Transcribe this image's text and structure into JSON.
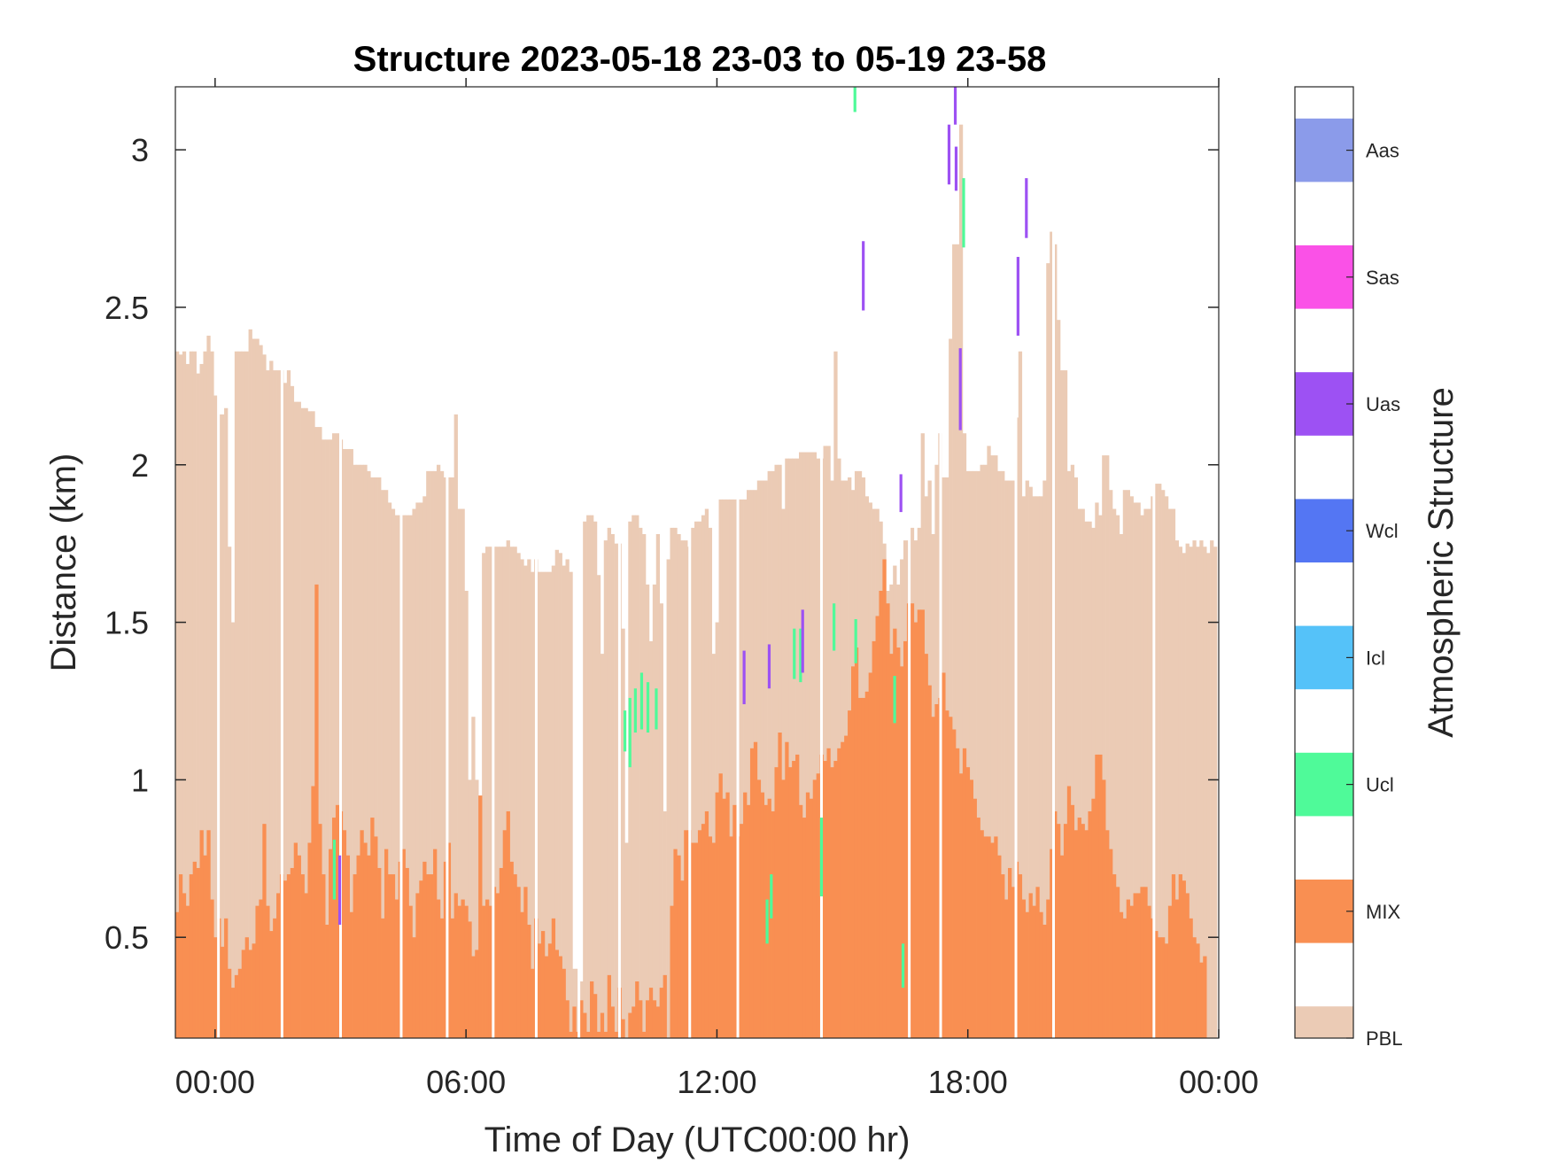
{
  "chart_data": {
    "type": "bar",
    "title": "Structure 2023-05-18 23-03 to 05-19 23-58",
    "xlabel": "Time of Day (UTC00:00 hr)",
    "ylabel": "Distance (km)",
    "xlim_hours": [
      -0.95,
      24.0
    ],
    "ylim": [
      0.18,
      3.2
    ],
    "xticks": [
      {
        "value": 0,
        "label": "00:00"
      },
      {
        "value": 6,
        "label": "06:00"
      },
      {
        "value": 12,
        "label": "12:00"
      },
      {
        "value": 18,
        "label": "18:00"
      },
      {
        "value": 24,
        "label": "00:00"
      }
    ],
    "yticks": [
      {
        "value": 0.5,
        "label": "0.5"
      },
      {
        "value": 1,
        "label": "1"
      },
      {
        "value": 1.5,
        "label": "1.5"
      },
      {
        "value": 2,
        "label": "2"
      },
      {
        "value": 2.5,
        "label": "2.5"
      },
      {
        "value": 3,
        "label": "3"
      }
    ],
    "colorbar": {
      "label": "Atmospheric Structure",
      "categories": [
        {
          "name": "PBL",
          "color": "#ebcbb5"
        },
        {
          "name": "MIX",
          "color": "#f98f52"
        },
        {
          "name": "Ucl",
          "color": "#4ffa99"
        },
        {
          "name": "Icl",
          "color": "#55c2f9"
        },
        {
          "name": "Wcl",
          "color": "#5476f3"
        },
        {
          "name": "Uas",
          "color": "#9d51f3"
        },
        {
          "name": "Sas",
          "color": "#fa51e7"
        },
        {
          "name": "Aas",
          "color": "#8b9bea"
        }
      ]
    },
    "series": [
      {
        "name": "PBL",
        "x_start_hours": -0.95,
        "step_hours": 0.0833,
        "values": [
          2.36,
          2.35,
          2.36,
          2.32,
          2.36,
          2.36,
          2.29,
          2.32,
          2.36,
          2.41,
          2.36,
          2.22,
          2.16,
          2.16,
          2.18,
          1.74,
          1.5,
          2.36,
          2.36,
          2.36,
          2.36,
          2.43,
          2.4,
          2.4,
          2.38,
          2.35,
          2.3,
          2.33,
          2.3,
          2.3,
          2.3,
          2.26,
          2.3,
          2.25,
          2.2,
          2.2,
          2.18,
          2.18,
          2.17,
          2.17,
          2.12,
          2.12,
          2.08,
          2.08,
          2.08,
          2.1,
          2.1,
          2.08,
          2.05,
          2.05,
          2.05,
          2.0,
          2.0,
          2.0,
          2.0,
          1.98,
          1.96,
          1.96,
          1.96,
          1.92,
          1.92,
          1.88,
          1.86,
          1.84,
          1.84,
          1.84,
          1.84,
          1.84,
          1.86,
          1.88,
          1.88,
          1.9,
          1.98,
          1.98,
          1.98,
          2.0,
          1.98,
          1.96,
          1.96,
          1.96,
          2.16,
          1.86,
          1.86,
          1.6,
          1.0,
          1.2,
          1.0,
          0.95,
          1.72,
          1.74,
          1.74,
          1.74,
          1.74,
          1.74,
          1.74,
          1.76,
          1.74,
          1.74,
          1.72,
          1.7,
          1.68,
          1.7,
          1.66,
          1.7,
          1.66,
          1.66,
          1.66,
          1.66,
          1.68,
          1.73,
          1.72,
          1.68,
          1.7,
          1.66,
          0.4,
          0.4,
          0.36,
          1.82,
          1.84,
          1.84,
          1.82,
          1.65,
          1.4,
          1.76,
          1.8,
          1.78,
          1.75,
          1.75,
          1.48,
          0.8,
          1.82,
          1.84,
          1.84,
          1.8,
          1.78,
          1.62,
          1.44,
          1.62,
          1.78,
          1.56,
          0.9,
          1.7,
          1.8,
          1.8,
          1.78,
          1.76,
          1.76,
          1.74,
          1.8,
          1.82,
          1.82,
          1.84,
          1.86,
          1.8,
          1.4,
          1.5,
          1.89,
          1.89,
          1.89,
          1.89,
          1.89,
          1.89,
          1.89,
          1.89,
          1.92,
          1.92,
          1.92,
          1.95,
          1.95,
          1.95,
          1.98,
          1.98,
          2.0,
          2.0,
          1.86,
          2.02,
          2.02,
          2.02,
          2.02,
          2.04,
          2.04,
          2.04,
          2.04,
          2.04,
          2.02,
          2.02,
          2.06,
          2.06,
          1.95,
          2.36,
          2.02,
          1.95,
          1.95,
          1.96,
          1.92,
          1.98,
          1.98,
          1.96,
          1.9,
          1.88,
          1.86,
          1.86,
          1.82,
          1.75,
          1.6,
          1.62,
          1.68,
          1.62,
          1.7,
          1.76,
          1.76,
          1.8,
          1.76,
          1.8,
          2.1,
          1.9,
          1.95,
          1.78,
          2.0,
          2.1,
          1.96,
          1.96,
          2.4,
          2.7,
          2.7,
          3.08,
          2.1,
          1.98,
          1.98,
          1.98,
          1.98,
          2.0,
          2.0,
          2.06,
          2.03,
          2.03,
          1.98,
          1.98,
          1.95,
          1.95,
          1.95,
          2.15,
          2.36,
          1.9,
          1.95,
          1.93,
          1.9,
          1.9,
          1.9,
          1.95,
          2.64,
          2.74,
          2.7,
          2.46,
          2.3,
          2.3,
          1.98,
          2.0,
          1.96,
          1.86,
          1.86,
          1.82,
          1.82,
          1.8,
          1.88,
          1.84,
          2.03,
          2.03,
          1.92,
          1.86,
          1.84,
          1.78,
          1.92,
          1.92,
          1.9,
          1.88,
          1.88,
          1.84,
          1.86,
          1.86,
          1.9,
          1.94,
          1.94,
          1.92,
          1.9,
          1.86,
          1.86,
          1.76,
          1.74,
          1.72,
          1.75,
          1.74,
          1.76,
          1.74,
          1.76,
          1.74,
          1.72,
          1.76,
          1.74
        ]
      },
      {
        "name": "MIX",
        "x_start_hours": -0.95,
        "step_hours": 0.0833,
        "values": [
          0.58,
          0.7,
          0.64,
          0.6,
          0.7,
          0.74,
          0.72,
          0.84,
          0.76,
          0.84,
          0.62,
          0.5,
          0.56,
          0.47,
          0.56,
          0.4,
          0.34,
          0.38,
          0.4,
          0.46,
          0.5,
          0.46,
          0.48,
          0.6,
          0.62,
          0.86,
          0.6,
          0.52,
          0.56,
          0.64,
          0.7,
          0.68,
          0.7,
          0.72,
          0.8,
          0.76,
          0.7,
          0.64,
          0.8,
          0.98,
          1.62,
          0.86,
          0.7,
          0.54,
          0.78,
          0.88,
          0.92,
          0.9,
          0.84,
          0.76,
          0.58,
          0.7,
          0.76,
          0.84,
          0.8,
          0.76,
          0.88,
          0.82,
          0.72,
          0.56,
          0.78,
          0.7,
          0.7,
          0.62,
          0.74,
          0.78,
          0.72,
          0.6,
          0.5,
          0.64,
          0.68,
          0.74,
          0.7,
          0.7,
          0.78,
          0.62,
          0.56,
          0.74,
          0.8,
          0.56,
          0.64,
          0.6,
          0.62,
          0.6,
          0.55,
          0.44,
          0.46,
          0.95,
          0.6,
          0.62,
          0.6,
          0.66,
          0.64,
          0.72,
          0.84,
          0.9,
          0.74,
          0.7,
          0.66,
          0.58,
          0.66,
          0.54,
          0.4,
          0.56,
          0.48,
          0.52,
          0.44,
          0.48,
          0.56,
          0.46,
          0.44,
          0.4,
          0.3,
          0.2,
          0.28,
          0.2,
          0.3,
          0.26,
          0.2,
          0.36,
          0.32,
          0.2,
          0.26,
          0.2,
          0.38,
          0.28,
          0.2,
          0.34,
          0.24,
          0.18,
          0.26,
          0.28,
          0.36,
          0.3,
          0.2,
          0.3,
          0.34,
          0.3,
          0.28,
          0.34,
          0.38,
          0.18,
          0.6,
          0.78,
          0.76,
          0.68,
          0.84,
          0.84,
          0.8,
          0.8,
          0.84,
          0.86,
          0.9,
          0.82,
          0.8,
          0.96,
          1.02,
          0.94,
          0.96,
          0.82,
          0.92,
          0.82,
          0.86,
          0.96,
          0.92,
          1.1,
          1.12,
          1.0,
          0.96,
          0.92,
          0.94,
          0.9,
          1.04,
          1.15,
          1.0,
          1.12,
          1.04,
          1.06,
          1.08,
          0.92,
          0.88,
          0.96,
          0.94,
          1.0,
          1.02,
          1.08,
          1.06,
          1.1,
          1.04,
          1.06,
          1.1,
          1.12,
          1.14,
          1.22,
          1.36,
          1.42,
          1.26,
          1.26,
          1.28,
          1.34,
          1.44,
          1.52,
          1.6,
          1.7,
          1.56,
          1.4,
          1.48,
          1.42,
          1.36,
          1.44,
          1.56,
          1.56,
          1.5,
          1.54,
          1.54,
          1.4,
          1.3,
          1.2,
          1.24,
          1.26,
          1.34,
          1.22,
          1.2,
          1.16,
          1.1,
          1.02,
          1.1,
          1.04,
          1.0,
          0.94,
          0.88,
          0.84,
          0.82,
          0.82,
          0.8,
          0.82,
          0.76,
          0.7,
          0.62,
          0.72,
          0.66,
          0.74,
          0.7,
          0.62,
          0.58,
          0.64,
          0.6,
          0.66,
          0.58,
          0.54,
          0.62,
          0.78,
          0.9,
          0.86,
          0.76,
          0.86,
          0.98,
          0.92,
          0.84,
          0.88,
          0.86,
          0.84,
          0.9,
          0.94,
          1.08,
          1.08,
          1.0,
          0.84,
          0.78,
          0.7,
          0.66,
          0.58,
          0.56,
          0.62,
          0.6,
          0.64,
          0.64,
          0.66,
          0.66,
          0.6,
          0.56,
          0.52,
          0.5,
          0.5,
          0.48,
          0.6,
          0.7,
          0.62,
          0.7,
          0.68,
          0.64,
          0.56,
          0.5,
          0.48,
          0.42,
          0.44
        ]
      }
    ],
    "gaps_hours": [
      0.08,
      1.6,
      3.0,
      4.45,
      5.55,
      6.65,
      7.68,
      8.7,
      9.67,
      11.35,
      12.5,
      14.5,
      16.6,
      17.35,
      19.15,
      20.05,
      22.45
    ]
  },
  "overlays": [
    {
      "class": "Ucl",
      "color": "#4ffa99",
      "segments": [
        {
          "t": 2.85,
          "y0": 0.62,
          "y1": 0.81
        },
        {
          "t": 9.8,
          "y0": 1.09,
          "y1": 1.22
        },
        {
          "t": 9.92,
          "y0": 1.04,
          "y1": 1.26
        },
        {
          "t": 10.05,
          "y0": 1.15,
          "y1": 1.29
        },
        {
          "t": 10.2,
          "y0": 1.16,
          "y1": 1.34
        },
        {
          "t": 10.35,
          "y0": 1.15,
          "y1": 1.31
        },
        {
          "t": 10.55,
          "y0": 1.16,
          "y1": 1.29
        },
        {
          "t": 13.2,
          "y0": 0.48,
          "y1": 0.62
        },
        {
          "t": 13.3,
          "y0": 0.56,
          "y1": 0.7
        },
        {
          "t": 13.85,
          "y0": 1.32,
          "y1": 1.48
        },
        {
          "t": 14.0,
          "y0": 1.31,
          "y1": 1.48
        },
        {
          "t": 14.5,
          "y0": 0.63,
          "y1": 0.88
        },
        {
          "t": 14.8,
          "y0": 1.41,
          "y1": 1.56
        },
        {
          "t": 15.3,
          "y0": 3.12,
          "y1": 3.2
        },
        {
          "t": 15.32,
          "y0": 1.37,
          "y1": 1.51
        },
        {
          "t": 16.25,
          "y0": 1.18,
          "y1": 1.33
        },
        {
          "t": 16.45,
          "y0": 0.34,
          "y1": 0.48
        },
        {
          "t": 17.9,
          "y0": 2.69,
          "y1": 2.91
        }
      ]
    },
    {
      "class": "Uas",
      "color": "#9d51f3",
      "segments": [
        {
          "t": 2.98,
          "y0": 0.54,
          "y1": 0.76
        },
        {
          "t": 12.65,
          "y0": 1.24,
          "y1": 1.41
        },
        {
          "t": 13.25,
          "y0": 1.29,
          "y1": 1.43
        },
        {
          "t": 14.05,
          "y0": 1.34,
          "y1": 1.54
        },
        {
          "t": 15.5,
          "y0": 2.49,
          "y1": 2.71
        },
        {
          "t": 16.4,
          "y0": 1.85,
          "y1": 1.97
        },
        {
          "t": 17.55,
          "y0": 2.89,
          "y1": 3.08
        },
        {
          "t": 17.7,
          "y0": 3.08,
          "y1": 3.2
        },
        {
          "t": 17.72,
          "y0": 2.87,
          "y1": 3.01
        },
        {
          "t": 17.82,
          "y0": 2.11,
          "y1": 2.37
        },
        {
          "t": 19.2,
          "y0": 2.41,
          "y1": 2.66
        },
        {
          "t": 19.4,
          "y0": 2.72,
          "y1": 2.91
        }
      ]
    }
  ]
}
